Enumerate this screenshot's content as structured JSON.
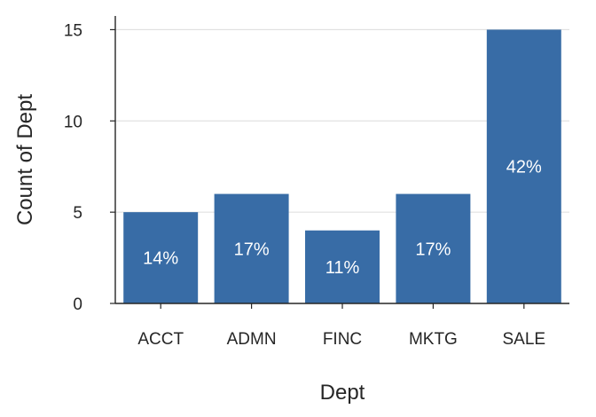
{
  "chart_data": {
    "type": "bar",
    "title": "",
    "xlabel": "Dept",
    "ylabel": "Count of Dept",
    "categories": [
      "ACCT",
      "ADMN",
      "FINC",
      "MKTG",
      "SALE"
    ],
    "values": [
      5,
      6,
      4,
      6,
      15
    ],
    "data_labels": [
      "14%",
      "17%",
      "11%",
      "17%",
      "42%"
    ],
    "ylim": [
      0,
      15.75
    ],
    "yticks": [
      0,
      5,
      10,
      15
    ],
    "grid": "horizontal",
    "colors": {
      "bar": "#386ca6",
      "grid": "#dcdcdc",
      "axis": "#262626",
      "text": "#262626",
      "label": "#ffffff"
    }
  }
}
